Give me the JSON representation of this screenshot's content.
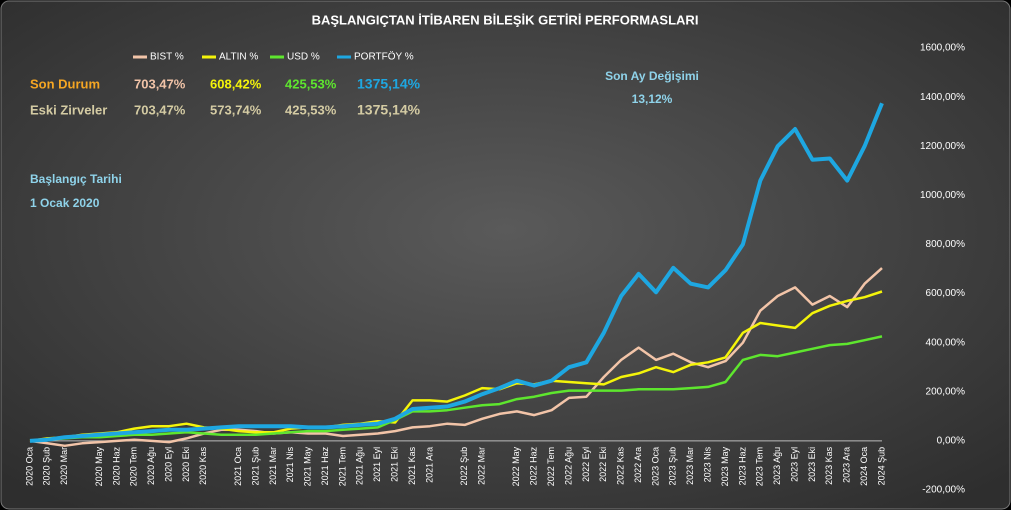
{
  "chart_data": {
    "type": "line",
    "title": "BAŞLANGIÇTAN İTİBAREN BİLEŞİK GETİRİ PERFORMASLARI",
    "categories": [
      "2020 Oca",
      "2020 Şub",
      "2020 Mar",
      null,
      "2020 May",
      "2020 Haz",
      "2020 Tem",
      "2020 Ağu",
      "2020 Eyl",
      "2020 Eki",
      "2020 Kas",
      null,
      "2021 Oca",
      "2021 Şub",
      "2021 Mar",
      "2021 Nis",
      "2021 May",
      "2021 Haz",
      "2021 Tem",
      "2021 Ağu",
      "2021 Eyl",
      "2021 Eki",
      "2021 Kas",
      "2021 Ara",
      null,
      "2022 Şub",
      "2022 Mar",
      null,
      "2022 May",
      "2022 Haz",
      "2022 Tem",
      "2022 Ağu",
      "2022 Eyl",
      "2022 Eki",
      "2022 Kas",
      "2022 Ara",
      "2023 Oca",
      "2023 Şub",
      "2023 Mar",
      "2023 Nis",
      "2023 May",
      "2023 Haz",
      "2023 Tem",
      "2023 Ağu",
      "2023 Eyl",
      "2023 Eki",
      "2023 Kas",
      "2023 Ara",
      "2024 Oca",
      "2024 Şub"
    ],
    "series": [
      {
        "name": "BIST %",
        "color": "#f2c4a8",
        "values": [
          0,
          -10,
          -20,
          -10,
          -5,
          0,
          5,
          0,
          -5,
          10,
          30,
          45,
          45,
          40,
          30,
          35,
          30,
          30,
          20,
          25,
          30,
          40,
          55,
          60,
          70,
          65,
          90,
          110,
          120,
          105,
          125,
          175,
          180,
          260,
          330,
          380,
          330,
          355,
          320,
          300,
          325,
          400,
          530,
          590,
          625,
          555,
          590,
          545,
          640,
          703.47
        ]
      },
      {
        "name": "ALTIN %",
        "color": "#f4f40a",
        "values": [
          0,
          10,
          15,
          25,
          30,
          35,
          50,
          60,
          60,
          70,
          55,
          50,
          40,
          35,
          35,
          50,
          55,
          55,
          65,
          70,
          80,
          75,
          165,
          165,
          160,
          185,
          215,
          210,
          235,
          230,
          245,
          240,
          235,
          230,
          260,
          275,
          300,
          280,
          310,
          320,
          340,
          440,
          480,
          470,
          460,
          520,
          550,
          570,
          585,
          608.42
        ]
      },
      {
        "name": "USD %",
        "color": "#5ee62e",
        "values": [
          0,
          5,
          10,
          15,
          15,
          20,
          25,
          25,
          30,
          35,
          30,
          25,
          25,
          25,
          30,
          35,
          40,
          40,
          45,
          50,
          55,
          85,
          120,
          120,
          125,
          135,
          145,
          150,
          170,
          180,
          195,
          205,
          205,
          205,
          205,
          210,
          210,
          210,
          215,
          220,
          240,
          330,
          350,
          345,
          360,
          375,
          390,
          395,
          410,
          425.53
        ]
      },
      {
        "name": "PORTFÖY %",
        "color": "#1ea7e1",
        "values": [
          0,
          5,
          15,
          20,
          25,
          30,
          35,
          40,
          45,
          45,
          50,
          55,
          60,
          60,
          60,
          60,
          55,
          55,
          60,
          65,
          70,
          90,
          130,
          135,
          140,
          160,
          190,
          215,
          245,
          225,
          245,
          300,
          320,
          440,
          590,
          680,
          605,
          705,
          640,
          625,
          695,
          800,
          1060,
          1200,
          1270,
          1145,
          1150,
          1060,
          1200,
          1375.14
        ]
      }
    ],
    "ylim": [
      -200,
      1600
    ],
    "yticks": [
      {
        "value": -200,
        "label": "-200,00%"
      },
      {
        "value": 0,
        "label": "0,00%"
      },
      {
        "value": 200,
        "label": "200,00%"
      },
      {
        "value": 400,
        "label": "400,00%"
      },
      {
        "value": 600,
        "label": "600,00%"
      },
      {
        "value": 800,
        "label": "800,00%"
      },
      {
        "value": 1000,
        "label": "1000,00%"
      },
      {
        "value": 1200,
        "label": "1200,00%"
      },
      {
        "value": 1400,
        "label": "1400,00%"
      },
      {
        "value": 1600,
        "label": "1600,00%"
      }
    ],
    "grid": false,
    "summary": [
      {
        "label": "Son Durum",
        "values": [
          "703,47%",
          "608,42%",
          "425,53%",
          "1375,14%"
        ]
      },
      {
        "label": "Eski Zirveler",
        "values": [
          "703,47%",
          "573,74%",
          "425,53%",
          "1375,14%"
        ]
      }
    ],
    "last_month": {
      "label": "Son Ay Değişimi",
      "value": "13,12%"
    },
    "start": {
      "label": "Başlangıç Tarihi",
      "value": "1 Ocak 2020"
    }
  }
}
